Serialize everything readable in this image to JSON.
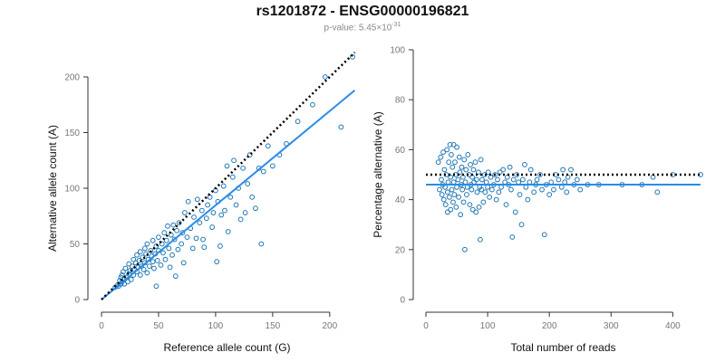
{
  "title": "rs1201872 - ENSG00000196821",
  "subtitle": {
    "prefix": "p-value: 5.45×10",
    "exponent": "-31"
  },
  "colors": {
    "points": "#1f77b4",
    "fit_line": "#2b8ce8",
    "reference_line": "#000000",
    "axis": "#333333",
    "tick_label": "#777777"
  },
  "chart_data": [
    {
      "type": "scatter",
      "xlabel": "Reference allele count (G)",
      "ylabel": "Alternative allele count (A)",
      "xlim": [
        0,
        220
      ],
      "ylim": [
        0,
        200
      ],
      "xticks": [
        0,
        50,
        100,
        150,
        200
      ],
      "yticks": [
        0,
        50,
        100,
        150,
        200
      ],
      "grid": false,
      "reference_line": {
        "style": "dotted",
        "points": [
          [
            0,
            0
          ],
          [
            222,
            222
          ]
        ]
      },
      "fit_line": {
        "style": "solid",
        "points": [
          [
            0,
            0
          ],
          [
            222,
            188
          ]
        ]
      },
      "points": [
        [
          12,
          11
        ],
        [
          14,
          13
        ],
        [
          15,
          12
        ],
        [
          16,
          17
        ],
        [
          17,
          14
        ],
        [
          17,
          20
        ],
        [
          18,
          22
        ],
        [
          18,
          16
        ],
        [
          19,
          25
        ],
        [
          20,
          18
        ],
        [
          20,
          14
        ],
        [
          21,
          28
        ],
        [
          22,
          20
        ],
        [
          23,
          16
        ],
        [
          24,
          32
        ],
        [
          24,
          23
        ],
        [
          25,
          26
        ],
        [
          26,
          18
        ],
        [
          27,
          30
        ],
        [
          28,
          22
        ],
        [
          28,
          36
        ],
        [
          29,
          27
        ],
        [
          30,
          33
        ],
        [
          31,
          25
        ],
        [
          31,
          40
        ],
        [
          32,
          29
        ],
        [
          33,
          35
        ],
        [
          34,
          22
        ],
        [
          34,
          43
        ],
        [
          35,
          30
        ],
        [
          36,
          38
        ],
        [
          37,
          27
        ],
        [
          38,
          46
        ],
        [
          38,
          33
        ],
        [
          39,
          41
        ],
        [
          40,
          24
        ],
        [
          40,
          50
        ],
        [
          41,
          36
        ],
        [
          42,
          30
        ],
        [
          43,
          44
        ],
        [
          44,
          39
        ],
        [
          45,
          34
        ],
        [
          45,
          53
        ],
        [
          46,
          28
        ],
        [
          47,
          41
        ],
        [
          48,
          12
        ],
        [
          48,
          48
        ],
        [
          49,
          35
        ],
        [
          50,
          56
        ],
        [
          50,
          44
        ],
        [
          52,
          31
        ],
        [
          53,
          50
        ],
        [
          54,
          42
        ],
        [
          55,
          60
        ],
        [
          56,
          36
        ],
        [
          57,
          53
        ],
        [
          58,
          66
        ],
        [
          59,
          46
        ],
        [
          60,
          29
        ],
        [
          61,
          58
        ],
        [
          62,
          40
        ],
        [
          63,
          67
        ],
        [
          64,
          54
        ],
        [
          65,
          21
        ],
        [
          66,
          62
        ],
        [
          67,
          45
        ],
        [
          68,
          69
        ],
        [
          70,
          50
        ],
        [
          71,
          60
        ],
        [
          72,
          33
        ],
        [
          73,
          78
        ],
        [
          75,
          56
        ],
        [
          76,
          88
        ],
        [
          78,
          64
        ],
        [
          80,
          46
        ],
        [
          81,
          74
        ],
        [
          83,
          55
        ],
        [
          84,
          90
        ],
        [
          86,
          69
        ],
        [
          88,
          80
        ],
        [
          89,
          54
        ],
        [
          90,
          47
        ],
        [
          92,
          73
        ],
        [
          93,
          85
        ],
        [
          95,
          92
        ],
        [
          97,
          65
        ],
        [
          98,
          78
        ],
        [
          100,
          98
        ],
        [
          101,
          34
        ],
        [
          102,
          88
        ],
        [
          104,
          48
        ],
        [
          105,
          76
        ],
        [
          107,
          102
        ],
        [
          108,
          80
        ],
        [
          110,
          120
        ],
        [
          111,
          61
        ],
        [
          113,
          92
        ],
        [
          115,
          110
        ],
        [
          116,
          125
        ],
        [
          118,
          85
        ],
        [
          120,
          100
        ],
        [
          122,
          72
        ],
        [
          124,
          118
        ],
        [
          126,
          78
        ],
        [
          128,
          104
        ],
        [
          130,
          130
        ],
        [
          132,
          92
        ],
        [
          135,
          82
        ],
        [
          138,
          118
        ],
        [
          140,
          50
        ],
        [
          142,
          115
        ],
        [
          146,
          138
        ],
        [
          150,
          120
        ],
        [
          156,
          130
        ],
        [
          162,
          140
        ],
        [
          172,
          160
        ],
        [
          185,
          175
        ],
        [
          196,
          200
        ],
        [
          210,
          155
        ],
        [
          220,
          218
        ]
      ]
    },
    {
      "type": "scatter",
      "xlabel": "Total number of reads",
      "ylabel": "Percentage alternative (A)",
      "xlim": [
        0,
        445
      ],
      "ylim": [
        0,
        100
      ],
      "xticks": [
        0,
        100,
        200,
        300,
        400
      ],
      "yticks": [
        0,
        20,
        40,
        60,
        80,
        100
      ],
      "grid": false,
      "reference_line": {
        "style": "dotted",
        "points": [
          [
            0,
            50
          ],
          [
            445,
            50
          ]
        ]
      },
      "fit_line": {
        "style": "solid",
        "points": [
          [
            0,
            46
          ],
          [
            445,
            46
          ]
        ]
      },
      "points": [
        [
          20,
          55
        ],
        [
          22,
          44
        ],
        [
          24,
          57
        ],
        [
          25,
          48
        ],
        [
          26,
          42
        ],
        [
          27,
          46
        ],
        [
          28,
          59
        ],
        [
          29,
          40
        ],
        [
          30,
          52
        ],
        [
          31,
          45
        ],
        [
          32,
          38
        ],
        [
          33,
          50
        ],
        [
          34,
          60
        ],
        [
          35,
          43
        ],
        [
          35,
          35
        ],
        [
          36,
          47
        ],
        [
          37,
          55
        ],
        [
          38,
          41
        ],
        [
          39,
          62
        ],
        [
          40,
          36
        ],
        [
          40,
          49
        ],
        [
          41,
          58
        ],
        [
          42,
          44
        ],
        [
          43,
          53
        ],
        [
          44,
          39
        ],
        [
          45,
          62
        ],
        [
          45,
          47
        ],
        [
          46,
          42
        ],
        [
          47,
          55
        ],
        [
          48,
          50
        ],
        [
          49,
          37
        ],
        [
          50,
          61
        ],
        [
          50,
          45
        ],
        [
          52,
          48
        ],
        [
          53,
          41
        ],
        [
          54,
          57
        ],
        [
          55,
          51
        ],
        [
          56,
          34
        ],
        [
          57,
          46
        ],
        [
          58,
          53
        ],
        [
          59,
          44
        ],
        [
          60,
          49
        ],
        [
          61,
          39
        ],
        [
          62,
          56
        ],
        [
          63,
          20
        ],
        [
          64,
          47
        ],
        [
          65,
          52
        ],
        [
          66,
          42
        ],
        [
          67,
          45
        ],
        [
          68,
          58
        ],
        [
          70,
          50
        ],
        [
          71,
          38
        ],
        [
          72,
          54
        ],
        [
          73,
          46
        ],
        [
          74,
          44
        ],
        [
          75,
          49
        ],
        [
          76,
          36
        ],
        [
          77,
          52
        ],
        [
          78,
          47
        ],
        [
          80,
          55
        ],
        [
          81,
          35
        ],
        [
          82,
          48
        ],
        [
          83,
          43
        ],
        [
          85,
          51
        ],
        [
          86,
          37
        ],
        [
          87,
          45
        ],
        [
          88,
          24
        ],
        [
          89,
          56
        ],
        [
          90,
          44
        ],
        [
          91,
          48
        ],
        [
          93,
          39
        ],
        [
          95,
          50
        ],
        [
          96,
          43
        ],
        [
          98,
          47
        ],
        [
          100,
          45
        ],
        [
          101,
          51
        ],
        [
          103,
          41
        ],
        [
          105,
          49
        ],
        [
          107,
          44
        ],
        [
          110,
          46
        ],
        [
          112,
          50
        ],
        [
          114,
          40
        ],
        [
          116,
          48
        ],
        [
          118,
          43
        ],
        [
          120,
          51
        ],
        [
          122,
          45
        ],
        [
          125,
          52
        ],
        [
          128,
          47
        ],
        [
          130,
          38
        ],
        [
          132,
          49
        ],
        [
          134,
          46
        ],
        [
          136,
          53
        ],
        [
          138,
          44
        ],
        [
          140,
          25
        ],
        [
          142,
          48
        ],
        [
          145,
          35
        ],
        [
          147,
          50
        ],
        [
          150,
          47
        ],
        [
          152,
          42
        ],
        [
          155,
          30
        ],
        [
          157,
          48
        ],
        [
          160,
          54
        ],
        [
          162,
          45
        ],
        [
          165,
          40
        ],
        [
          168,
          47
        ],
        [
          170,
          52
        ],
        [
          175,
          43
        ],
        [
          178,
          46
        ],
        [
          180,
          48
        ],
        [
          185,
          50
        ],
        [
          188,
          44
        ],
        [
          192,
          26
        ],
        [
          195,
          46
        ],
        [
          200,
          42
        ],
        [
          203,
          47
        ],
        [
          207,
          44
        ],
        [
          210,
          50
        ],
        [
          215,
          48
        ],
        [
          220,
          45
        ],
        [
          222,
          52
        ],
        [
          225,
          47
        ],
        [
          228,
          43
        ],
        [
          230,
          49
        ],
        [
          235,
          52
        ],
        [
          240,
          46
        ],
        [
          245,
          48
        ],
        [
          250,
          44
        ],
        [
          262,
          46
        ],
        [
          280,
          46
        ],
        [
          318,
          46
        ],
        [
          350,
          46
        ],
        [
          368,
          49
        ],
        [
          375,
          43
        ],
        [
          400,
          50
        ],
        [
          445,
          50
        ]
      ]
    }
  ]
}
